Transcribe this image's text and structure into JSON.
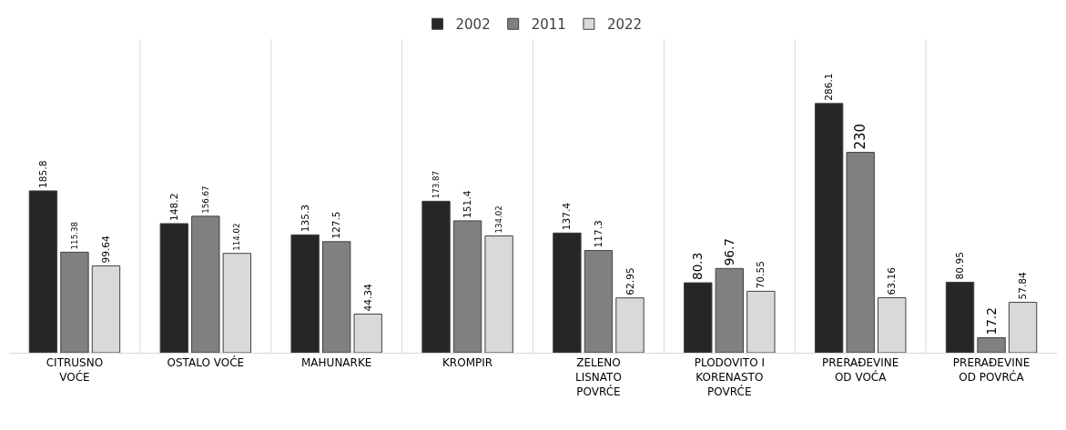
{
  "chart_data": {
    "type": "bar",
    "categories": [
      "CITRUSNO VOĆE",
      "OSTALO VOĆE",
      "MAHUNARKE",
      "KROMPIR",
      "ZELENO LISNATO POVRĆE",
      "PLODOVITO I KORENASTO POVRĆE",
      "PRERAĐEVINE OD VOĆA",
      "PRERAĐEVINE OD POVRĆA"
    ],
    "series": [
      {
        "name": "2002",
        "color": "#262626",
        "values": [
          185.8,
          148.2,
          135.3,
          173.87,
          137.4,
          80.3,
          286.1,
          80.95
        ]
      },
      {
        "name": "2011",
        "color": "#808080",
        "values": [
          115.38,
          156.67,
          127.5,
          151.4,
          117.3,
          96.7,
          230,
          17.2
        ]
      },
      {
        "name": "2022",
        "color": "#d9d9d9",
        "values": [
          99.64,
          114.02,
          44.34,
          134.02,
          62.95,
          70.55,
          63.16,
          57.84
        ]
      }
    ],
    "ylim": [
      0,
      360
    ],
    "data_labels": true,
    "grid": "x",
    "legend": "top",
    "tick_labels": "x"
  }
}
